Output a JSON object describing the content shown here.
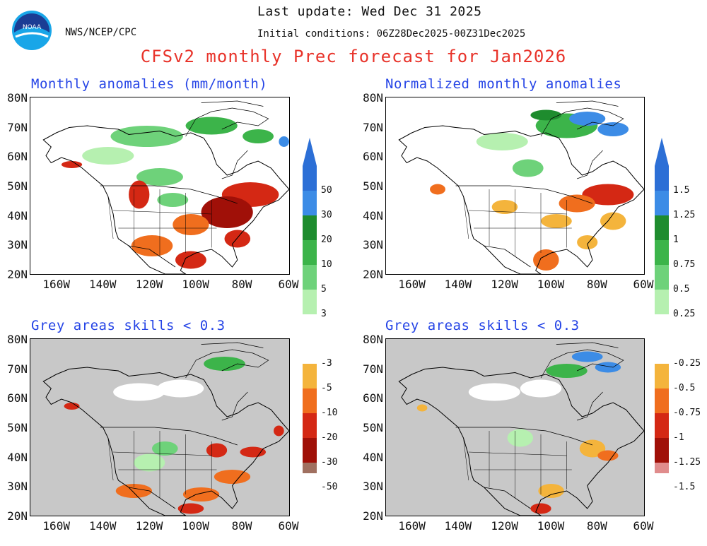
{
  "header": {
    "logo_text": "NOAA",
    "last_update": "Last update: Wed Dec 31 2025",
    "agency": "NWS/NCEP/CPC",
    "initial_conditions": "Initial conditions: 06Z28Dec2025-00Z31Dec2025",
    "title": "CFSv2 monthly Prec forecast for Jan2026"
  },
  "panels": [
    {
      "title": "Monthly anomalies (mm/month)"
    },
    {
      "title": "Normalized monthly anomalies"
    },
    {
      "title": "Grey areas skills < 0.3"
    },
    {
      "title": "Grey areas skills < 0.3"
    }
  ],
  "axes": {
    "lat_labels": [
      "80N",
      "70N",
      "60N",
      "50N",
      "40N",
      "30N",
      "20N"
    ],
    "lon_labels": [
      "160W",
      "140W",
      "120W",
      "100W",
      "80W",
      "60W"
    ]
  },
  "colorbar_anomaly": {
    "labels": [
      "50",
      "30",
      "20",
      "10",
      "5",
      "3",
      "-3",
      "-5",
      "-10",
      "-20",
      "-30",
      "-50"
    ]
  },
  "colorbar_normalized": {
    "labels": [
      "1.5",
      "1.25",
      "1",
      "0.75",
      "0.5",
      "0.25",
      "-0.25",
      "-0.5",
      "-0.75",
      "-1",
      "-1.25",
      "-1.5"
    ]
  },
  "colors": {
    "blue_dark": "#2c6fd6",
    "blue": "#3c8ce6",
    "green_dark": "#1e8c2e",
    "green": "#3cb44a",
    "green_mid": "#6ed27a",
    "green_light": "#b6f0b0",
    "white": "#ffffff",
    "orange_light": "#f4b43c",
    "orange": "#f06e1e",
    "red": "#d42814",
    "red_dark": "#a01008",
    "brown": "#a07060",
    "pink": "#e08c8c",
    "title_red": "#e8332a",
    "title_blue": "#2544e6",
    "grey_mask": "#c8c8c8"
  }
}
